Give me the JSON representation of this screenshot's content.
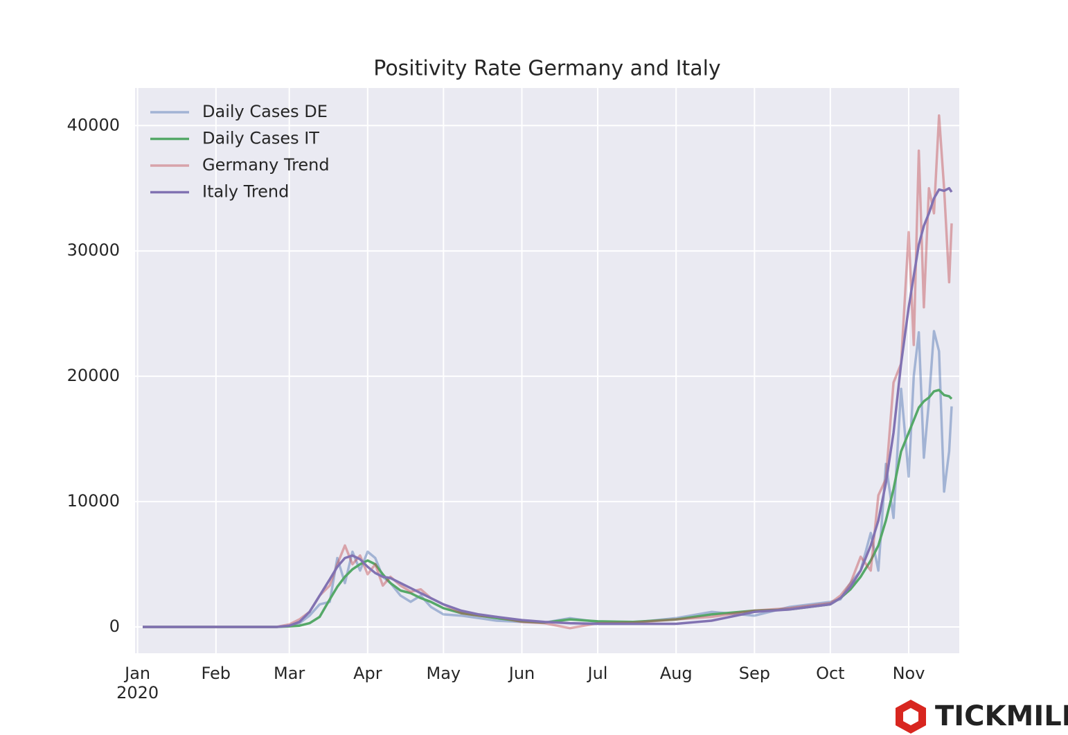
{
  "chart_data": {
    "type": "line",
    "title": "Positivity Rate Germany and Italy",
    "watermark": "TICKMILL",
    "x_year_label": "2020",
    "x": [
      "2020-01-03",
      "2020-01-15",
      "2020-02-01",
      "2020-02-15",
      "2020-02-25",
      "2020-03-01",
      "2020-03-05",
      "2020-03-09",
      "2020-03-13",
      "2020-03-17",
      "2020-03-20",
      "2020-03-23",
      "2020-03-26",
      "2020-03-29",
      "2020-04-01",
      "2020-04-04",
      "2020-04-07",
      "2020-04-10",
      "2020-04-14",
      "2020-04-18",
      "2020-04-22",
      "2020-04-26",
      "2020-05-01",
      "2020-05-08",
      "2020-05-15",
      "2020-05-22",
      "2020-06-01",
      "2020-06-10",
      "2020-06-20",
      "2020-07-01",
      "2020-07-15",
      "2020-08-01",
      "2020-08-15",
      "2020-09-01",
      "2020-09-15",
      "2020-10-01",
      "2020-10-05",
      "2020-10-09",
      "2020-10-13",
      "2020-10-17",
      "2020-10-20",
      "2020-10-23",
      "2020-10-26",
      "2020-10-29",
      "2020-11-01",
      "2020-11-03",
      "2020-11-05",
      "2020-11-07",
      "2020-11-09",
      "2020-11-11",
      "2020-11-13",
      "2020-11-15",
      "2020-11-17",
      "2020-11-18"
    ],
    "series": [
      {
        "name": "Daily Cases DE",
        "color": "#4c72b0",
        "alpha": 0.45,
        "values": [
          0,
          0,
          0,
          0,
          0,
          100,
          300,
          900,
          1800,
          2000,
          5500,
          3500,
          6000,
          4500,
          6000,
          5500,
          4000,
          3500,
          2500,
          2000,
          2500,
          1600,
          1000,
          900,
          700,
          500,
          400,
          350,
          700,
          400,
          350,
          700,
          1200,
          900,
          1600,
          2000,
          2200,
          3500,
          4500,
          7500,
          4500,
          13000,
          8700,
          19000,
          12000,
          20000,
          23500,
          13500,
          18000,
          23600,
          22000,
          10800,
          14000,
          17600
        ]
      },
      {
        "name": "Daily Cases IT",
        "color": "#55a868",
        "alpha": 1,
        "values": [
          0,
          0,
          0,
          0,
          0,
          50,
          100,
          300,
          800,
          2200,
          3200,
          4000,
          4600,
          5000,
          5300,
          5000,
          4200,
          3500,
          2900,
          2700,
          2300,
          2000,
          1500,
          1100,
          900,
          700,
          450,
          350,
          600,
          450,
          400,
          600,
          1000,
          1300,
          1400,
          1800,
          2300,
          3000,
          4000,
          5300,
          6500,
          8500,
          11000,
          14000,
          15500,
          16500,
          17500,
          18000,
          18300,
          18800,
          18900,
          18500,
          18400,
          18200
        ]
      },
      {
        "name": "Germany Trend",
        "color": "#c44e52",
        "alpha": 0.45,
        "values": [
          0,
          0,
          0,
          0,
          0,
          200,
          600,
          1200,
          2500,
          3300,
          5000,
          6500,
          5000,
          5700,
          4200,
          5000,
          3300,
          4000,
          3300,
          2800,
          3000,
          2300,
          1800,
          1100,
          900,
          800,
          400,
          300,
          -100,
          300,
          350,
          600,
          800,
          1300,
          1500,
          1900,
          2500,
          3500,
          5600,
          4500,
          10500,
          11800,
          19500,
          21000,
          31500,
          22500,
          38000,
          25500,
          35000,
          33000,
          40800,
          35000,
          27500,
          32200
        ]
      },
      {
        "name": "Italy Trend",
        "color": "#8172b2",
        "alpha": 1,
        "values": [
          0,
          0,
          0,
          0,
          0,
          100,
          400,
          1200,
          2500,
          3800,
          4800,
          5500,
          5700,
          5400,
          4800,
          4300,
          4000,
          3900,
          3500,
          3100,
          2700,
          2300,
          1800,
          1300,
          1000,
          800,
          550,
          400,
          300,
          250,
          250,
          250,
          500,
          1200,
          1400,
          1800,
          2300,
          3200,
          4500,
          6500,
          8500,
          11500,
          15500,
          21000,
          25500,
          28000,
          30500,
          32000,
          33000,
          34200,
          34900,
          34800,
          35000,
          34700
        ]
      }
    ],
    "xlim": [
      "2019-12-31",
      "2020-11-21"
    ],
    "xticks": [
      {
        "value": "2020-01-01",
        "label": "Jan"
      },
      {
        "value": "2020-02-01",
        "label": "Feb"
      },
      {
        "value": "2020-03-01",
        "label": "Mar"
      },
      {
        "value": "2020-04-01",
        "label": "Apr"
      },
      {
        "value": "2020-05-01",
        "label": "May"
      },
      {
        "value": "2020-06-01",
        "label": "Jun"
      },
      {
        "value": "2020-07-01",
        "label": "Jul"
      },
      {
        "value": "2020-08-01",
        "label": "Aug"
      },
      {
        "value": "2020-09-01",
        "label": "Sep"
      },
      {
        "value": "2020-10-01",
        "label": "Oct"
      },
      {
        "value": "2020-11-01",
        "label": "Nov"
      }
    ],
    "ylim": [
      -2100,
      43000
    ],
    "yticks": [
      0,
      10000,
      20000,
      30000,
      40000
    ],
    "grid": true,
    "background": "#eaeaf2",
    "legend": "upper left"
  }
}
